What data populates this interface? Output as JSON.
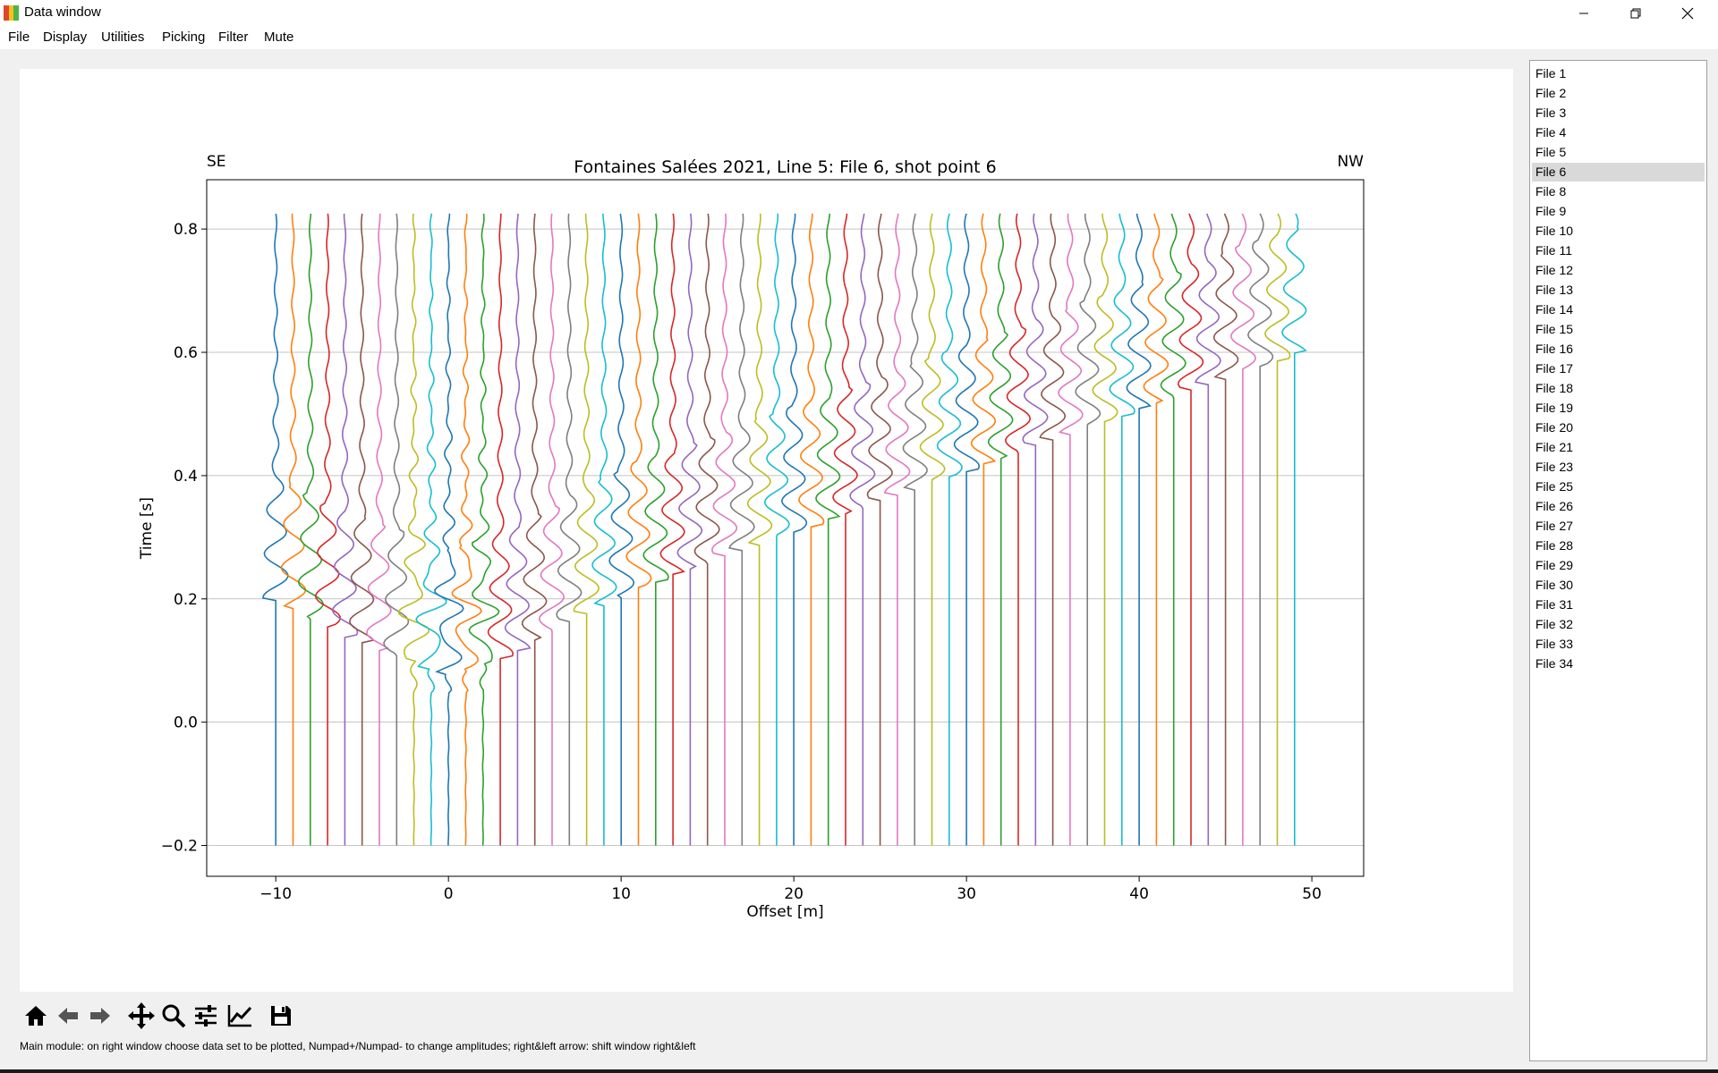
{
  "window": {
    "title": "Data window",
    "controls": [
      "minimize",
      "restore",
      "close"
    ]
  },
  "menu": [
    "File",
    "Display",
    "Utilities",
    "Picking",
    "Filter",
    "Mute"
  ],
  "figure": {
    "left_label": "SE",
    "right_label": "NW",
    "chart_data": {
      "type": "line",
      "title": "Fontaines Salées 2021, Line 5: File 6, shot point 6",
      "xlabel": "Offset [m]",
      "ylabel": "Time [s]",
      "xlim": [
        -14,
        53
      ],
      "ylim": [
        -0.25,
        0.88
      ],
      "y_inverted": false,
      "xticks": [
        -10,
        0,
        10,
        20,
        30,
        40,
        50
      ],
      "xtick_labels": [
        "−10",
        "0",
        "10",
        "20",
        "30",
        "40",
        "50"
      ],
      "yticks": [
        -0.2,
        0.0,
        0.2,
        0.4,
        0.6,
        0.8
      ],
      "ytick_labels": [
        "−0.2",
        "0.0",
        "0.2",
        "0.4",
        "0.6",
        "0.8"
      ],
      "ygrid": true,
      "trace_time_range": [
        -0.2,
        0.825
      ],
      "trace_offsets": [
        -10,
        -9,
        -8,
        -7,
        -6,
        -5,
        -4,
        -3,
        -2,
        -1,
        0,
        1,
        2,
        3,
        4,
        5,
        6,
        7,
        8,
        9,
        10,
        11,
        12,
        13,
        14,
        15,
        16,
        17,
        18,
        19,
        20,
        21,
        22,
        23,
        24,
        25,
        26,
        27,
        28,
        29,
        30,
        31,
        32,
        33,
        34,
        35,
        36,
        37,
        38,
        39,
        40,
        41,
        42,
        43,
        44,
        45,
        46,
        47,
        48,
        49
      ],
      "first_arrival_times_s": [
        0.22,
        0.205,
        0.19,
        0.175,
        0.16,
        0.15,
        0.14,
        0.13,
        0.12,
        0.11,
        0.1,
        0.105,
        0.115,
        0.125,
        0.14,
        0.155,
        0.17,
        0.185,
        0.2,
        0.21,
        0.225,
        0.24,
        0.25,
        0.26,
        0.27,
        0.28,
        0.29,
        0.3,
        0.31,
        0.32,
        0.33,
        0.34,
        0.35,
        0.36,
        0.37,
        0.38,
        0.39,
        0.4,
        0.41,
        0.42,
        0.43,
        0.44,
        0.45,
        0.46,
        0.47,
        0.48,
        0.49,
        0.5,
        0.51,
        0.52,
        0.53,
        0.54,
        0.55,
        0.56,
        0.57,
        0.58,
        0.59,
        0.6,
        0.61,
        0.62
      ],
      "palette": [
        "#1f77b4",
        "#ff7f0e",
        "#2ca02c",
        "#d62728",
        "#9467bd",
        "#8c564b",
        "#e377c2",
        "#7f7f7f",
        "#bcbd22",
        "#17becf"
      ]
    }
  },
  "file_list": {
    "items": [
      "File 1",
      "File 2",
      "File 3",
      "File 4",
      "File 5",
      "File 6",
      "File 8",
      "File 9",
      "File 10",
      "File 11",
      "File 12",
      "File 13",
      "File 14",
      "File 15",
      "File 16",
      "File 17",
      "File 18",
      "File 19",
      "File 20",
      "File 21",
      "File 23",
      "File 25",
      "File 26",
      "File 27",
      "File 28",
      "File 29",
      "File 30",
      "File 31",
      "File 32",
      "File 33",
      "File 34"
    ],
    "selected": "File 6"
  },
  "toolbar": {
    "tools": [
      "home-icon",
      "back-arrow-icon",
      "forward-arrow-icon",
      "pan-icon",
      "zoom-icon",
      "subplots-icon",
      "edit-axis-icon",
      "save-icon"
    ]
  },
  "status": "Main module: on right window choose data set to be plotted, Numpad+/Numpad- to change amplitudes; right&left arrow: shift window right&left"
}
